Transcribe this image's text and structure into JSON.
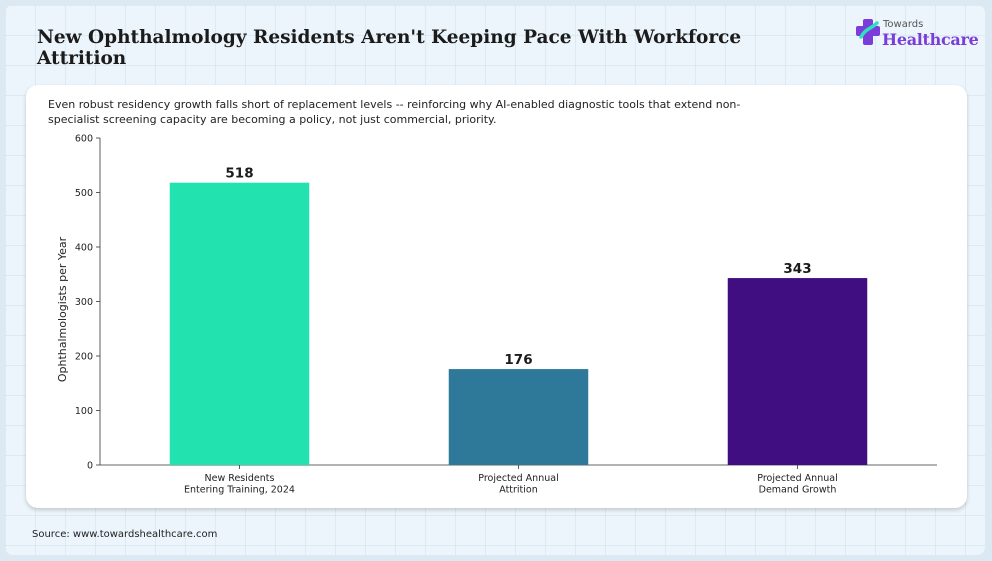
{
  "header": {
    "title": "New Ophthalmology Residents Aren't Keeping Pace With Workforce Attrition"
  },
  "logo": {
    "top_text": "Towards",
    "main_text": "Healthcare",
    "colors": [
      "#7a3ddb",
      "#2ee0c0"
    ]
  },
  "subtitle": "Even robust residency growth falls short of replacement levels -- reinforcing why AI-enabled diagnostic tools that extend non-specialist screening capacity are becoming a policy, not just commercial, priority.",
  "source": "Source: www.towardshealthcare.com",
  "chart_data": {
    "type": "bar",
    "categories": [
      [
        "New Residents",
        "Entering Training, 2024"
      ],
      [
        "Projected Annual",
        "Attrition"
      ],
      [
        "Projected Annual",
        "Demand Growth"
      ]
    ],
    "values": [
      518,
      176,
      343
    ],
    "data_labels": [
      "518",
      "176",
      "343"
    ],
    "colors": [
      "#22e3b0",
      "#2e7999",
      "#400e80"
    ],
    "ylabel": "Ophthalmologists per Year",
    "ylim": [
      0,
      600
    ],
    "yticks": [
      0,
      100,
      200,
      300,
      400,
      500,
      600
    ],
    "grid": false,
    "legend": "none"
  }
}
